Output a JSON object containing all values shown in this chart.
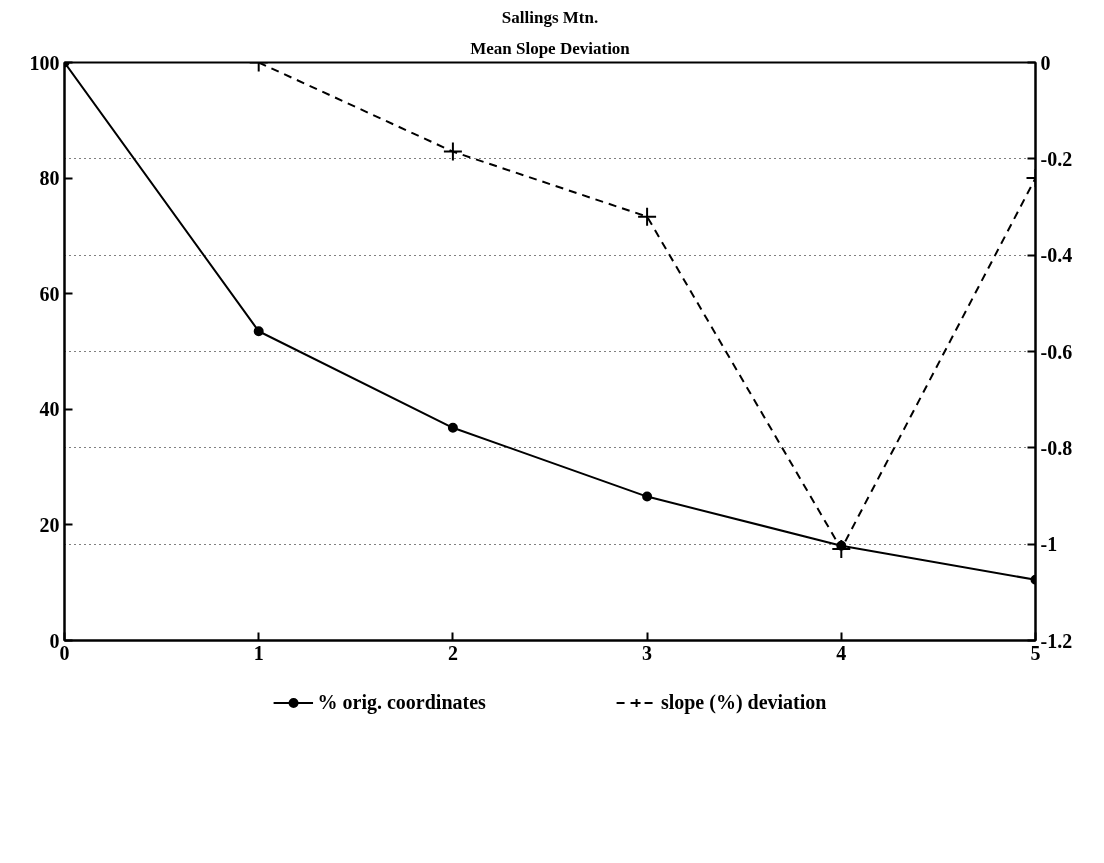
{
  "chart_data": {
    "type": "line",
    "title": "Sallings Mtn.",
    "subtitle": "Mean Slope Deviation",
    "x": [
      0,
      1,
      2,
      3,
      4,
      5
    ],
    "xlim": [
      0,
      5
    ],
    "xticks": [
      0,
      1,
      2,
      3,
      4,
      5
    ],
    "ylim": [
      0,
      100
    ],
    "yticks": [
      0,
      20,
      40,
      60,
      80,
      100
    ],
    "y2lim": [
      -1.2,
      0
    ],
    "y2ticks": [
      -1.2,
      -1,
      -0.8,
      -0.6,
      -0.4,
      -0.2,
      0
    ],
    "grid": "y",
    "legend": "bottom",
    "series": [
      {
        "name": "% orig. coordinates",
        "color": "#000000",
        "marker": "circle",
        "line_style": "solid",
        "values": [
          100,
          53.5,
          36.8,
          24.9,
          16.4,
          10.5
        ]
      },
      {
        "name": "slope (%) deviation",
        "color": "#000000",
        "marker": "cross",
        "line_style": "dashed",
        "axis": "y2",
        "values": [
          null,
          0,
          -0.185,
          -0.32,
          -1.01,
          -0.24
        ]
      }
    ]
  }
}
